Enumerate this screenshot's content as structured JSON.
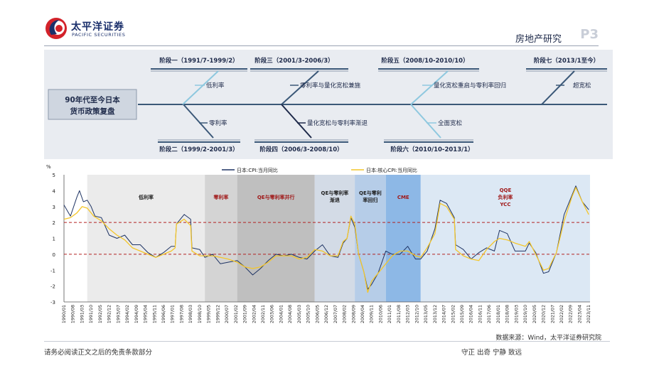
{
  "header": {
    "logo_text": "太平洋证券",
    "logo_sub": "PACIFIC SECURITIES",
    "section_title": "房地产研究",
    "page_no": "P3"
  },
  "fishbone": {
    "head": [
      "90年代至今日本",
      "货币政策复盘"
    ],
    "stages_top": [
      {
        "label": "阶段一（1991/7-1999/2）",
        "policy": "低利率"
      },
      {
        "label": "阶段三（2001/3-2006/3）",
        "policy": "零利率与量化宽松兼施"
      },
      {
        "label": "阶段五（2008/10-2010/10）",
        "policy": "量化宽松重启与零利率回归"
      },
      {
        "label": "阶段七（2013/1至今）",
        "policy": "超宽松"
      }
    ],
    "stages_bottom": [
      {
        "label": "阶段二（1999/2-2001/3）",
        "policy": "零利率"
      },
      {
        "label": "阶段四（2006/3-2008/10）",
        "policy": "量化宽松与零利率渐退"
      },
      {
        "label": "阶段六（2010/10-2013/1）",
        "policy": "全面宽松"
      }
    ]
  },
  "chart_data": {
    "type": "line",
    "ylabel": "%",
    "ylim": [
      -3,
      5
    ],
    "yticks": [
      -3,
      -2,
      -1,
      0,
      1,
      2,
      3,
      4,
      5
    ],
    "xlim": [
      "1990-01",
      "2023-12"
    ],
    "xticks": [
      "1990/01",
      "1990/08",
      "1991/03",
      "1991/10",
      "1992/05",
      "1992/12",
      "1993/07",
      "1994/02",
      "1994/09",
      "1995/04",
      "1995/11",
      "1996/06",
      "1997/01",
      "1997/08",
      "1998/03",
      "1998/10",
      "1999/05",
      "1999/12",
      "2000/07",
      "2001/02",
      "2001/09",
      "2002/04",
      "2002/11",
      "2003/06",
      "2004/01",
      "2004/08",
      "2005/03",
      "2005/10",
      "2006/05",
      "2006/12",
      "2007/07",
      "2008/02",
      "2008/09",
      "2009/04",
      "2009/11",
      "2010/06",
      "2011/01",
      "2011/08",
      "2012/03",
      "2012/10",
      "2013/05",
      "2013/12",
      "2014/07",
      "2015/02",
      "2015/09",
      "2016/04",
      "2016/11",
      "2017/06",
      "2018/01",
      "2018/08",
      "2019/03",
      "2019/10",
      "2020/05",
      "2020/12",
      "2021/07",
      "2022/02",
      "2022/09",
      "2023/04",
      "2023/11"
    ],
    "reference_lines": [
      2,
      0
    ],
    "legend": [
      "日本:CPI:当月同比",
      "日本:核心CPI:当月同比"
    ],
    "series": [
      {
        "name": "日本:CPI:当月同比",
        "color": "#1f3464",
        "points": [
          [
            "1990-01",
            3.1
          ],
          [
            "1990-06",
            2.4
          ],
          [
            "1990-11",
            3.6
          ],
          [
            "1991-01",
            4.0
          ],
          [
            "1991-04",
            3.3
          ],
          [
            "1991-07",
            3.4
          ],
          [
            "1991-10",
            3.0
          ],
          [
            "1992-01",
            2.4
          ],
          [
            "1992-06",
            2.3
          ],
          [
            "1992-12",
            1.2
          ],
          [
            "1993-06",
            1.0
          ],
          [
            "1993-12",
            1.2
          ],
          [
            "1994-06",
            0.6
          ],
          [
            "1994-12",
            0.6
          ],
          [
            "1995-06",
            0.1
          ],
          [
            "1995-12",
            -0.2
          ],
          [
            "1996-06",
            0.1
          ],
          [
            "1996-12",
            0.5
          ],
          [
            "1997-03",
            0.5
          ],
          [
            "1997-04",
            1.9
          ],
          [
            "1997-10",
            2.5
          ],
          [
            "1998-03",
            2.2
          ],
          [
            "1998-04",
            0.4
          ],
          [
            "1998-10",
            0.3
          ],
          [
            "1999-02",
            -0.2
          ],
          [
            "1999-08",
            0.0
          ],
          [
            "2000-02",
            -0.6
          ],
          [
            "2000-08",
            -0.5
          ],
          [
            "2001-03",
            -0.4
          ],
          [
            "2001-09",
            -0.8
          ],
          [
            "2002-03",
            -1.3
          ],
          [
            "2002-09",
            -0.9
          ],
          [
            "2003-03",
            -0.4
          ],
          [
            "2003-09",
            0.0
          ],
          [
            "2004-03",
            -0.1
          ],
          [
            "2004-09",
            0.0
          ],
          [
            "2005-03",
            -0.2
          ],
          [
            "2005-09",
            -0.3
          ],
          [
            "2006-03",
            0.2
          ],
          [
            "2006-09",
            0.6
          ],
          [
            "2007-03",
            -0.1
          ],
          [
            "2007-09",
            -0.2
          ],
          [
            "2008-01",
            0.7
          ],
          [
            "2008-04",
            1.0
          ],
          [
            "2008-07",
            2.3
          ],
          [
            "2008-10",
            1.7
          ],
          [
            "2009-01",
            0.0
          ],
          [
            "2009-05",
            -1.1
          ],
          [
            "2009-08",
            -2.2
          ],
          [
            "2009-11",
            -1.9
          ],
          [
            "2010-04",
            -1.2
          ],
          [
            "2010-10",
            0.2
          ],
          [
            "2011-03",
            0.0
          ],
          [
            "2011-09",
            0.0
          ],
          [
            "2012-03",
            0.5
          ],
          [
            "2012-09",
            -0.3
          ],
          [
            "2013-01",
            -0.3
          ],
          [
            "2013-06",
            0.2
          ],
          [
            "2013-12",
            1.6
          ],
          [
            "2014-04",
            3.4
          ],
          [
            "2014-09",
            3.2
          ],
          [
            "2015-03",
            2.3
          ],
          [
            "2015-04",
            0.6
          ],
          [
            "2015-10",
            0.3
          ],
          [
            "2016-04",
            -0.3
          ],
          [
            "2016-10",
            0.1
          ],
          [
            "2017-04",
            0.4
          ],
          [
            "2017-10",
            0.2
          ],
          [
            "2018-02",
            1.5
          ],
          [
            "2018-08",
            1.3
          ],
          [
            "2019-02",
            0.2
          ],
          [
            "2019-10",
            0.2
          ],
          [
            "2020-01",
            0.7
          ],
          [
            "2020-06",
            0.1
          ],
          [
            "2020-12",
            -1.2
          ],
          [
            "2021-04",
            -1.1
          ],
          [
            "2021-10",
            0.1
          ],
          [
            "2022-04",
            2.5
          ],
          [
            "2022-10",
            3.7
          ],
          [
            "2023-01",
            4.3
          ],
          [
            "2023-06",
            3.3
          ],
          [
            "2023-11",
            2.8
          ]
        ]
      },
      {
        "name": "日本:核心CPI:当月同比",
        "color": "#f4c62a",
        "points": [
          [
            "1990-01",
            2.2
          ],
          [
            "1990-06",
            2.3
          ],
          [
            "1990-11",
            2.6
          ],
          [
            "1991-03",
            3.0
          ],
          [
            "1991-07",
            2.9
          ],
          [
            "1991-12",
            2.4
          ],
          [
            "1992-06",
            2.1
          ],
          [
            "1992-12",
            1.6
          ],
          [
            "1993-06",
            1.2
          ],
          [
            "1993-12",
            0.9
          ],
          [
            "1994-06",
            0.4
          ],
          [
            "1994-12",
            0.2
          ],
          [
            "1995-06",
            0.0
          ],
          [
            "1995-12",
            -0.2
          ],
          [
            "1996-06",
            0.0
          ],
          [
            "1996-12",
            0.2
          ],
          [
            "1997-03",
            0.4
          ],
          [
            "1997-04",
            1.9
          ],
          [
            "1997-10",
            2.2
          ],
          [
            "1998-03",
            1.8
          ],
          [
            "1998-04",
            0.2
          ],
          [
            "1998-10",
            -0.1
          ],
          [
            "1999-02",
            -0.1
          ],
          [
            "1999-08",
            -0.1
          ],
          [
            "2000-02",
            -0.2
          ],
          [
            "2000-08",
            -0.3
          ],
          [
            "2001-03",
            -0.5
          ],
          [
            "2001-09",
            -0.8
          ],
          [
            "2002-03",
            -0.9
          ],
          [
            "2002-09",
            -0.8
          ],
          [
            "2003-03",
            -0.5
          ],
          [
            "2003-09",
            -0.1
          ],
          [
            "2004-03",
            -0.1
          ],
          [
            "2004-09",
            -0.1
          ],
          [
            "2005-03",
            -0.3
          ],
          [
            "2005-09",
            -0.2
          ],
          [
            "2006-03",
            0.3
          ],
          [
            "2006-09",
            0.2
          ],
          [
            "2007-03",
            -0.1
          ],
          [
            "2007-09",
            -0.1
          ],
          [
            "2008-01",
            0.8
          ],
          [
            "2008-04",
            1.0
          ],
          [
            "2008-07",
            2.4
          ],
          [
            "2008-10",
            1.9
          ],
          [
            "2009-01",
            0.0
          ],
          [
            "2009-05",
            -1.1
          ],
          [
            "2009-08",
            -2.4
          ],
          [
            "2009-11",
            -1.7
          ],
          [
            "2010-04",
            -1.2
          ],
          [
            "2010-10",
            -0.6
          ],
          [
            "2011-03",
            -0.1
          ],
          [
            "2011-09",
            0.2
          ],
          [
            "2012-03",
            0.2
          ],
          [
            "2012-09",
            -0.1
          ],
          [
            "2013-01",
            -0.2
          ],
          [
            "2013-06",
            0.4
          ],
          [
            "2013-12",
            1.3
          ],
          [
            "2014-04",
            3.2
          ],
          [
            "2014-09",
            3.0
          ],
          [
            "2015-03",
            2.2
          ],
          [
            "2015-04",
            0.3
          ],
          [
            "2015-10",
            -0.1
          ],
          [
            "2016-04",
            -0.3
          ],
          [
            "2016-10",
            -0.4
          ],
          [
            "2017-04",
            0.3
          ],
          [
            "2017-10",
            0.8
          ],
          [
            "2018-02",
            1.0
          ],
          [
            "2018-08",
            0.9
          ],
          [
            "2019-02",
            0.7
          ],
          [
            "2019-10",
            0.5
          ],
          [
            "2020-01",
            0.8
          ],
          [
            "2020-06",
            0.0
          ],
          [
            "2020-12",
            -1.0
          ],
          [
            "2021-04",
            -0.9
          ],
          [
            "2021-10",
            0.1
          ],
          [
            "2022-04",
            2.1
          ],
          [
            "2022-10",
            3.6
          ],
          [
            "2023-01",
            4.2
          ],
          [
            "2023-06",
            3.3
          ],
          [
            "2023-11",
            2.5
          ]
        ]
      }
    ],
    "bands": [
      {
        "start": "1991-07",
        "end": "1999-02",
        "color": "#ebebeb",
        "label": [
          "低利率"
        ],
        "label_color": "#222"
      },
      {
        "start": "1999-02",
        "end": "2001-03",
        "color": "#d4d4d4",
        "label": [
          "零利率"
        ],
        "label_color": "#a01818"
      },
      {
        "start": "2001-03",
        "end": "2006-03",
        "color": "#bfbfbf",
        "label": [
          "QE与零利率并行"
        ],
        "label_color": "#a01818"
      },
      {
        "start": "2006-03",
        "end": "2008-10",
        "color": "#d3dbe6",
        "label": [
          "QE与零利率",
          "渐退"
        ],
        "label_color": "#222"
      },
      {
        "start": "2008-10",
        "end": "2010-10",
        "color": "#b6cde8",
        "label": [
          "QE与零利",
          "率回归"
        ],
        "label_color": "#222"
      },
      {
        "start": "2010-10",
        "end": "2013-01",
        "color": "#8db8e6",
        "label": [
          "CME"
        ],
        "label_color": "#a01818"
      },
      {
        "start": "2013-01",
        "end": "2023-12",
        "color": "#dce8f4",
        "label": [
          "QQE",
          "负利率",
          "YCC"
        ],
        "label_color": "#a01818"
      }
    ]
  },
  "footer": {
    "source": "数据来源：Wind，太平洋证券研究院",
    "disclaimer": "请务必阅读正文之后的免责条款部分",
    "motto": "守正  出奇  宁静  致远"
  }
}
